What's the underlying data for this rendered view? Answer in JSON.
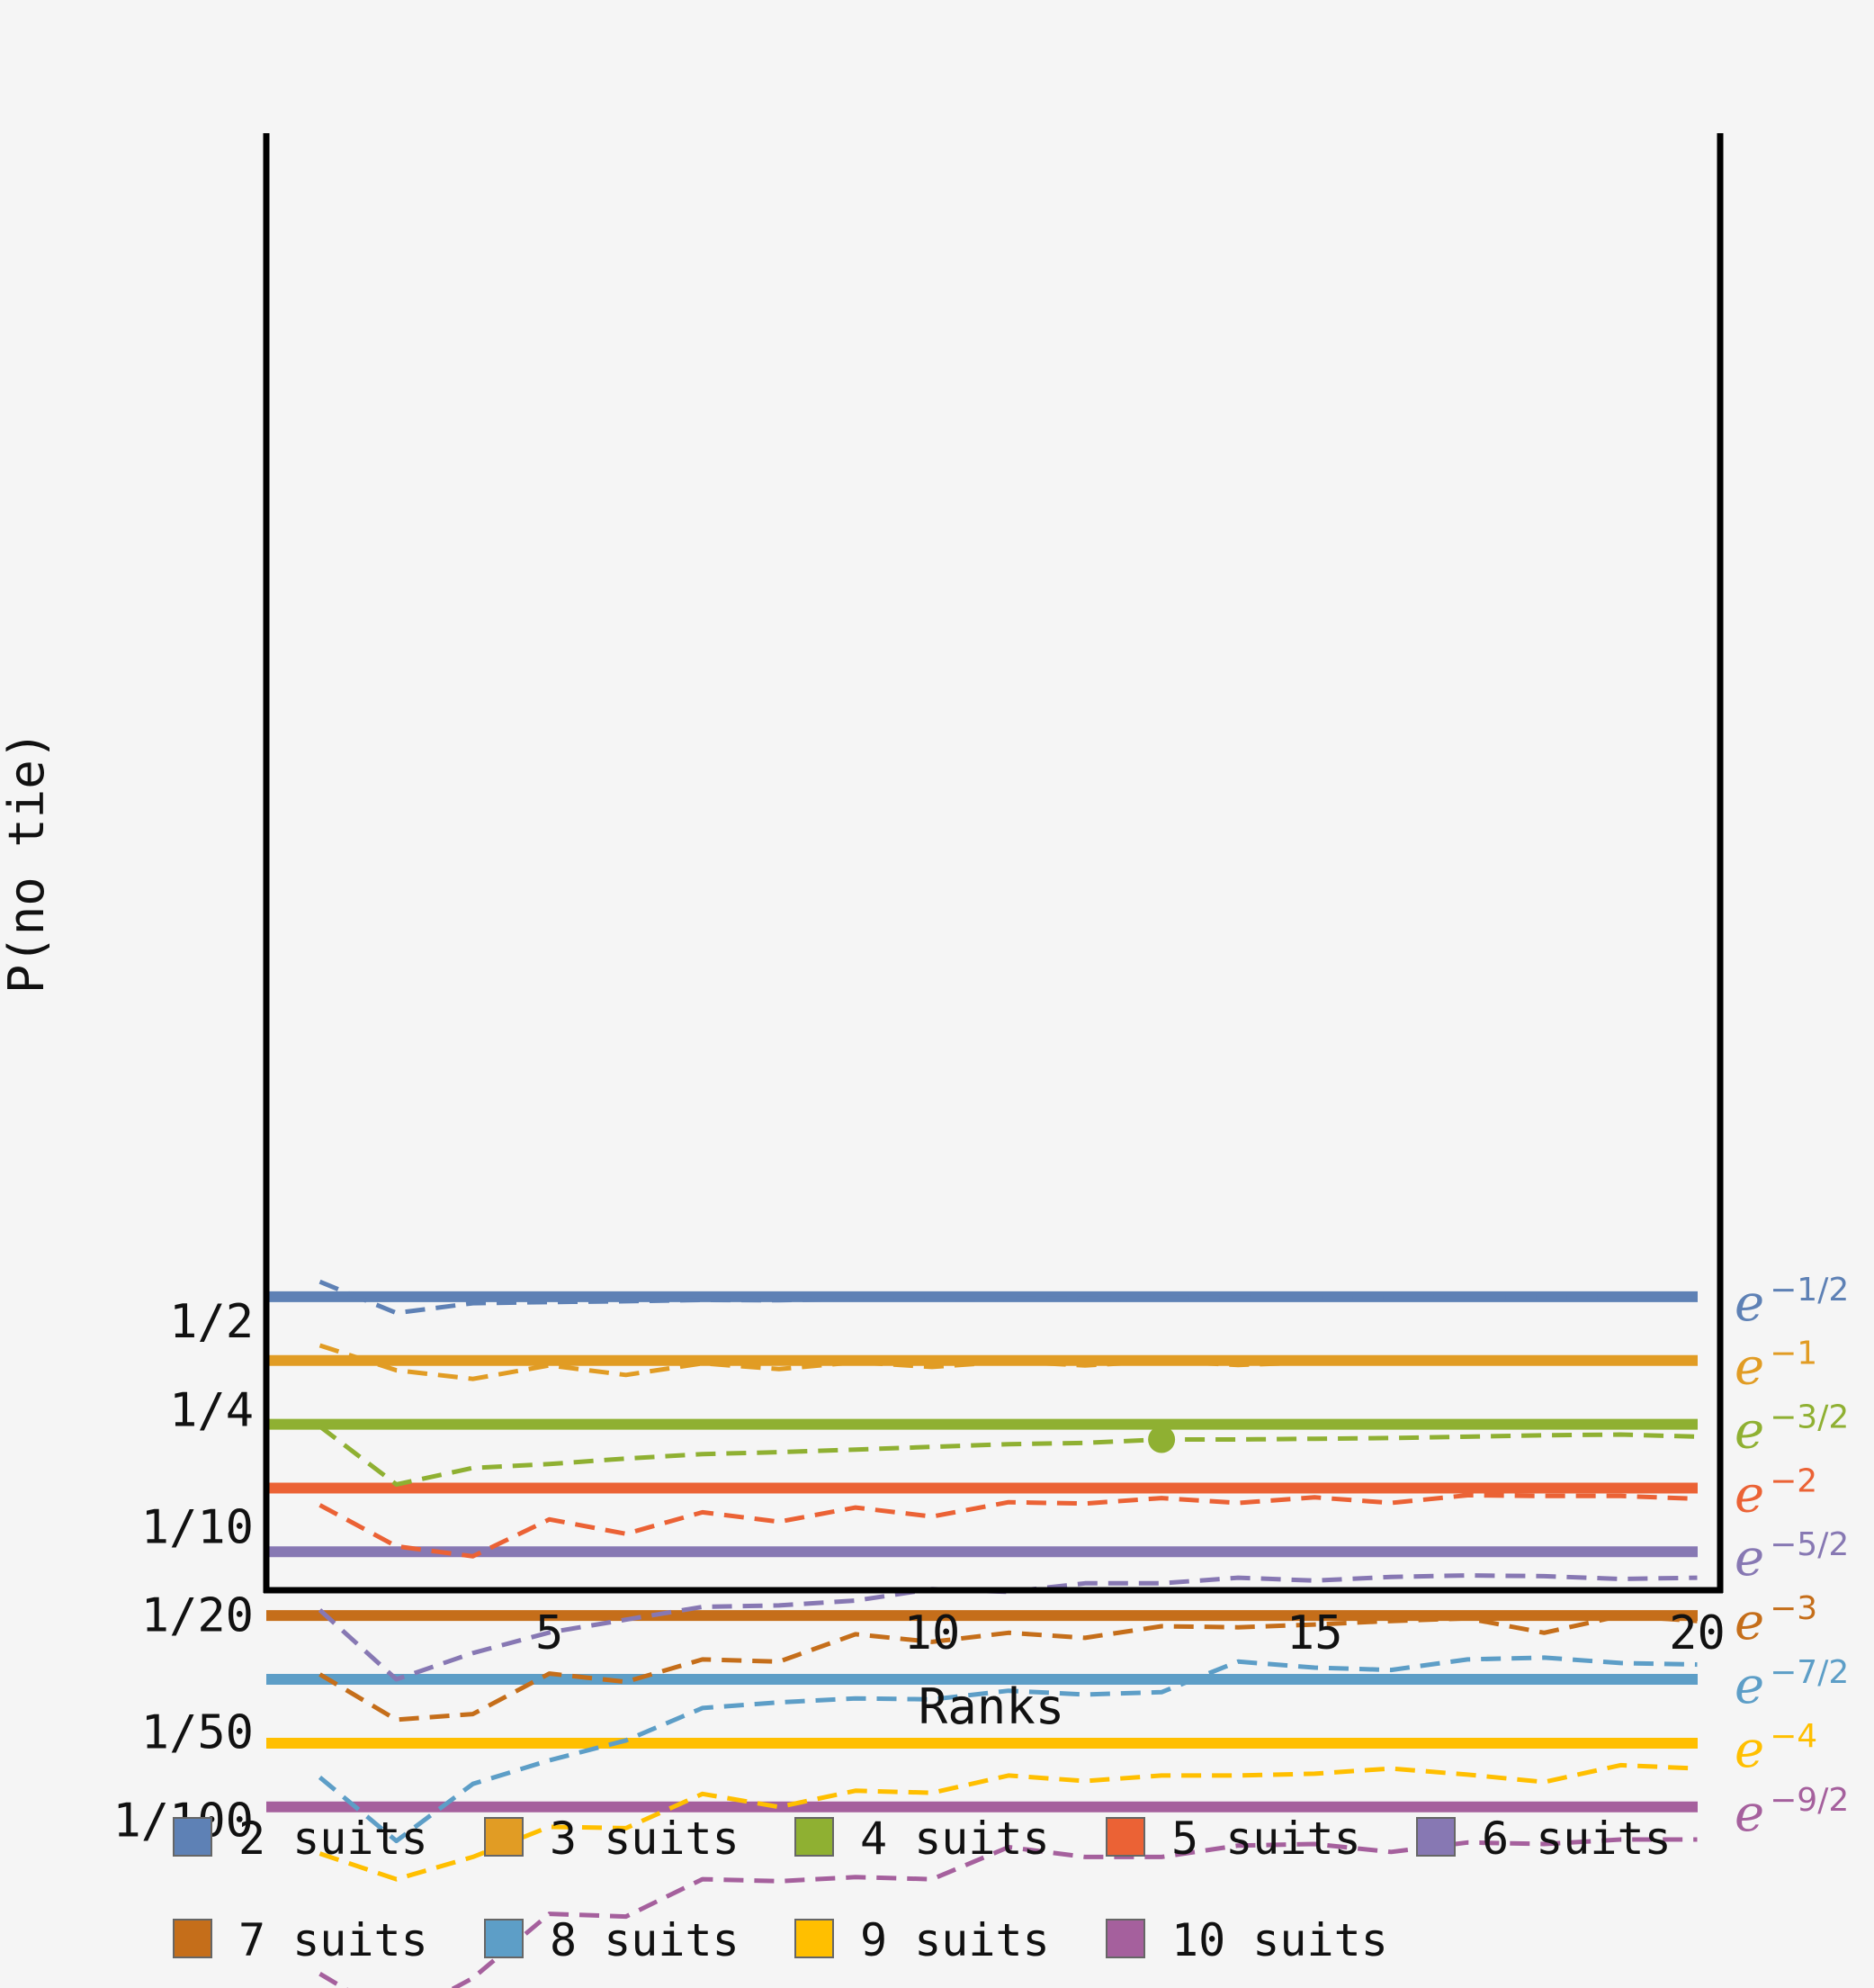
{
  "chart_data": {
    "type": "line",
    "xlabel": "Ranks",
    "ylabel": "P(no tie)",
    "x_scale": "linear",
    "y_scale": "log",
    "xlim": [
      1.3,
      20.3
    ],
    "x_ticks": [
      5,
      10,
      15,
      20
    ],
    "y_ticks": [
      {
        "value": 0.5,
        "label": "1/2"
      },
      {
        "value": 0.25,
        "label": "1/4"
      },
      {
        "value": 0.1,
        "label": "1/10"
      },
      {
        "value": 0.05,
        "label": "1/20"
      },
      {
        "value": 0.02,
        "label": "1/50"
      },
      {
        "value": 0.01,
        "label": "1/100"
      }
    ],
    "grid": false,
    "legend_placement": "bottom",
    "x": [
      2,
      3,
      4,
      5,
      6,
      7,
      8,
      9,
      10,
      11,
      12,
      13,
      14,
      15,
      16,
      17,
      18,
      19,
      20
    ],
    "series": [
      {
        "name": "2 suits",
        "color": "#5e81b5",
        "limit_base": "e",
        "limit_exp": "−1/2",
        "limit_value": 0.6065,
        "values": [
          0.6822,
          0.5339,
          0.5763,
          0.5818,
          0.5854,
          0.5913,
          0.5899,
          0.5962,
          0.5962,
          0.598,
          0.598,
          0.5998,
          0.5998,
          0.6017,
          0.6017,
          0.6035,
          0.6035,
          0.6035,
          0.6054
        ]
      },
      {
        "name": "3 suits",
        "color": "#e19c24",
        "limit_base": "e",
        "limit_exp": "−1",
        "limit_value": 0.3679,
        "values": [
          0.4139,
          0.3407,
          0.3183,
          0.354,
          0.3283,
          0.3597,
          0.3438,
          0.3628,
          0.3498,
          0.3646,
          0.354,
          0.3658,
          0.3551,
          0.3627,
          0.3627,
          0.3665,
          0.3614,
          0.3665,
          0.3608
        ]
      },
      {
        "name": "4 suits",
        "color": "#8fb032",
        "limit_base": "e",
        "limit_exp": "−3/2",
        "limit_value": 0.2231,
        "marker_x": 13,
        "values": [
          0.2194,
          0.1391,
          0.1584,
          0.1633,
          0.1705,
          0.1766,
          0.1792,
          0.1829,
          0.1868,
          0.1908,
          0.1928,
          0.198,
          0.198,
          0.1991,
          0.2002,
          0.2024,
          0.2047,
          0.2058,
          0.2024
        ]
      },
      {
        "name": "5 suits",
        "color": "#eb6235",
        "limit_base": "e",
        "limit_exp": "−2",
        "limit_value": 0.1353,
        "values": [
          0.1184,
          0.0857,
          0.0792,
          0.1058,
          0.0945,
          0.1119,
          0.1039,
          0.1161,
          0.1082,
          0.1211,
          0.1198,
          0.1251,
          0.1204,
          0.1258,
          0.1204,
          0.1278,
          0.1271,
          0.1271,
          0.1244
        ]
      },
      {
        "name": "6 suits",
        "color": "#8778b3",
        "limit_base": "e",
        "limit_exp": "−5/2",
        "limit_value": 0.0821,
        "values": [
          0.052,
          0.0302,
          0.0371,
          0.0436,
          0.0482,
          0.0533,
          0.0539,
          0.056,
          0.0613,
          0.0599,
          0.0641,
          0.0641,
          0.067,
          0.0655,
          0.0674,
          0.0682,
          0.0678,
          0.0663,
          0.067
        ]
      },
      {
        "name": "7 suits",
        "color": "#c56e1a",
        "limit_base": "e",
        "limit_exp": "−3",
        "limit_value": 0.0498,
        "values": [
          0.0314,
          0.022,
          0.023,
          0.0316,
          0.0296,
          0.0353,
          0.0347,
          0.043,
          0.0405,
          0.0435,
          0.0418,
          0.0458,
          0.0454,
          0.0464,
          0.0477,
          0.0487,
          0.0435,
          0.0497,
          0.0477
        ]
      },
      {
        "name": "8 suits",
        "color": "#5d9ec7",
        "limit_base": "e",
        "limit_exp": "−7/2",
        "limit_value": 0.0302,
        "values": [
          0.014,
          0.0085,
          0.0133,
          0.016,
          0.0187,
          0.0241,
          0.0252,
          0.026,
          0.0258,
          0.0276,
          0.0268,
          0.0273,
          0.0347,
          0.0331,
          0.0325,
          0.0353,
          0.0358,
          0.0343,
          0.0339
        ]
      },
      {
        "name": "9 suits",
        "color": "#ffbf00",
        "limit_base": "e",
        "limit_exp": "−4",
        "limit_value": 0.0183,
        "values": [
          0.0077,
          0.0063,
          0.0075,
          0.0095,
          0.0094,
          0.0123,
          0.0111,
          0.0126,
          0.0124,
          0.0142,
          0.0136,
          0.0142,
          0.0142,
          0.0144,
          0.015,
          0.0143,
          0.0135,
          0.0154,
          0.015
        ]
      },
      {
        "name": "10 suits",
        "color": "#a5609d",
        "limit_base": "e",
        "limit_exp": "−9/2",
        "limit_value": 0.0111,
        "values": [
          0.003,
          0.0021,
          0.0029,
          0.0048,
          0.0047,
          0.0063,
          0.0062,
          0.0064,
          0.0063,
          0.0081,
          0.0075,
          0.0075,
          0.0082,
          0.0083,
          0.0078,
          0.0084,
          0.0083,
          0.0086,
          0.0086
        ]
      }
    ]
  }
}
